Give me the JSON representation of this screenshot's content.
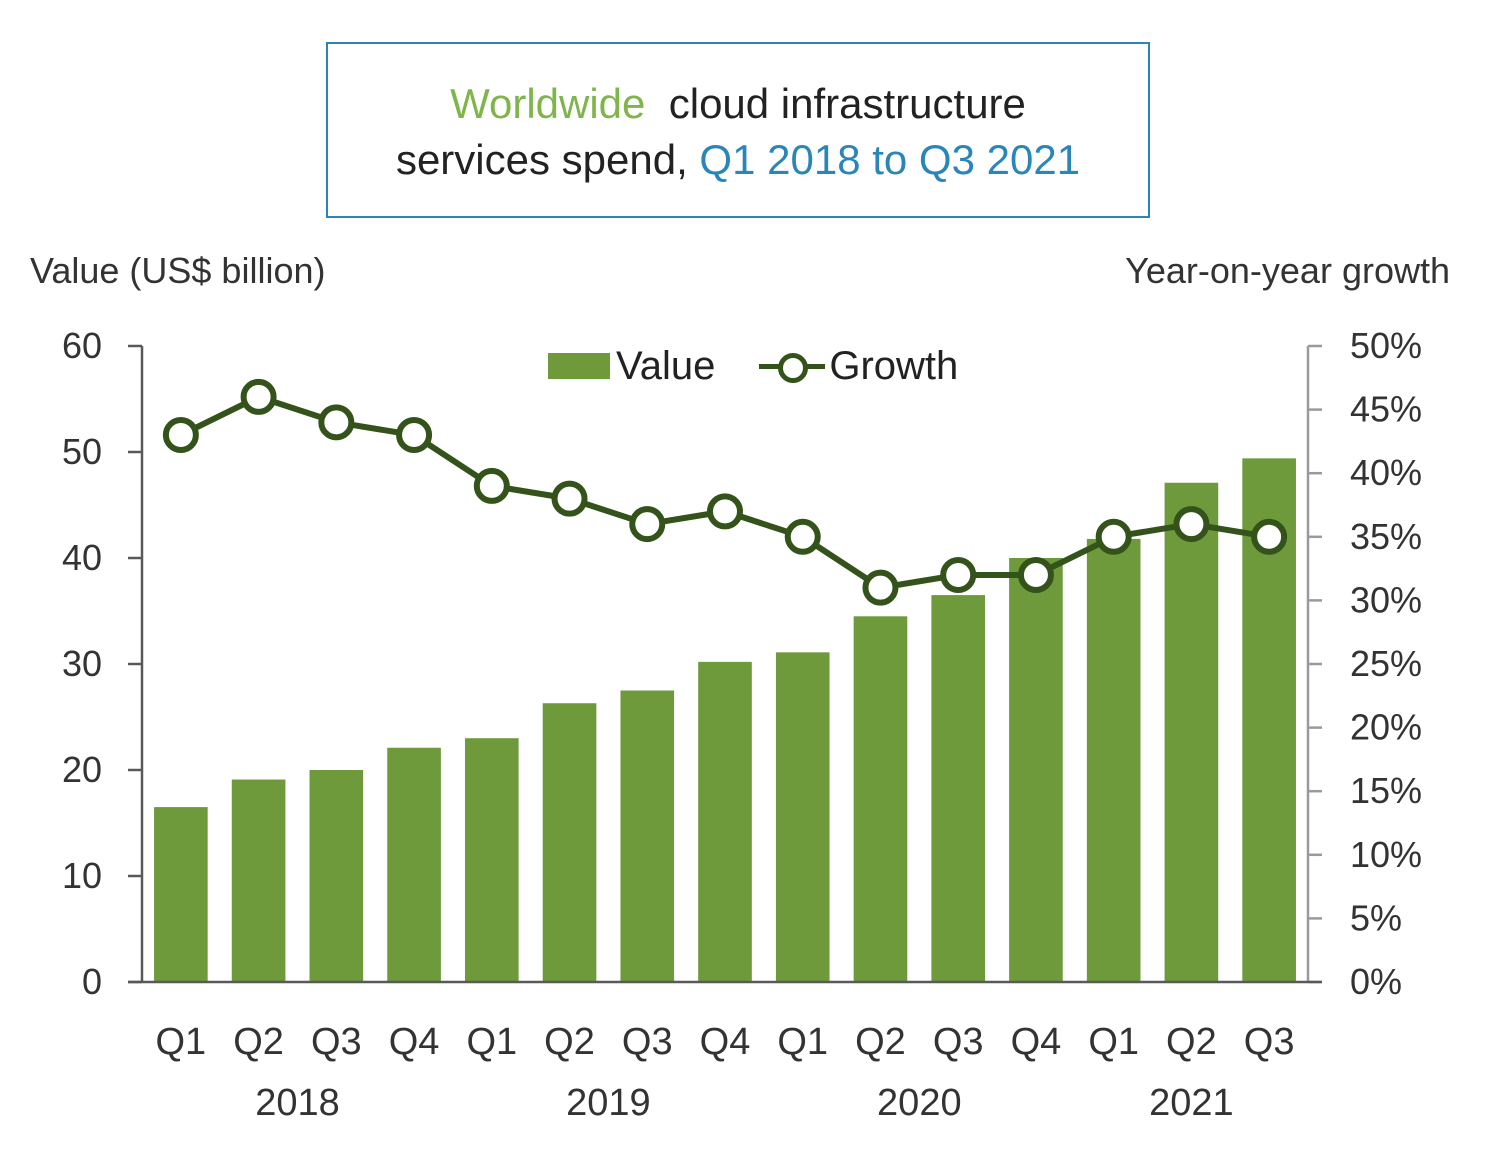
{
  "title": {
    "part1": "Worldwide",
    "part2": "cloud infrastructure",
    "part3": "services  spend,",
    "part4": "Q1 2018 to Q3 2021"
  },
  "colors": {
    "bar": "#6e9a3c",
    "line": "#33531a",
    "title_green": "#7fb54a",
    "title_blue": "#2a86b8"
  },
  "chart_data": {
    "type": "bar",
    "title": "Worldwide cloud infrastructure services spend, Q1 2018 to Q3 2021",
    "ylabel": "Value (US$ billion)",
    "y2label": "Year-on-year growth",
    "ylim": [
      0,
      60
    ],
    "y2lim": [
      0,
      0.5
    ],
    "yticks": [
      "0",
      "10",
      "20",
      "30",
      "40",
      "50",
      "60"
    ],
    "y2ticks": [
      "0%",
      "5%",
      "10%",
      "15%",
      "20%",
      "25%",
      "30%",
      "35%",
      "40%",
      "45%",
      "50%"
    ],
    "categories": [
      "Q1",
      "Q2",
      "Q3",
      "Q4",
      "Q1",
      "Q2",
      "Q3",
      "Q4",
      "Q1",
      "Q2",
      "Q3",
      "Q4",
      "Q1",
      "Q2",
      "Q3"
    ],
    "year_groups": [
      {
        "label": "2018",
        "from": 0,
        "to": 3
      },
      {
        "label": "2019",
        "from": 4,
        "to": 7
      },
      {
        "label": "2020",
        "from": 8,
        "to": 11
      },
      {
        "label": "2021",
        "from": 12,
        "to": 14
      }
    ],
    "legend_position": "top-center",
    "grid": false,
    "series": [
      {
        "name": "Value",
        "type": "bar",
        "axis": "left",
        "values": [
          16.5,
          19.1,
          20.0,
          22.1,
          23.0,
          26.3,
          27.5,
          30.2,
          31.1,
          34.5,
          36.5,
          40.0,
          41.8,
          47.1,
          49.4
        ]
      },
      {
        "name": "Growth",
        "type": "line",
        "axis": "right",
        "values": [
          0.43,
          0.46,
          0.44,
          0.43,
          0.39,
          0.38,
          0.36,
          0.37,
          0.35,
          0.31,
          0.32,
          0.32,
          0.35,
          0.36,
          0.35
        ]
      }
    ]
  }
}
